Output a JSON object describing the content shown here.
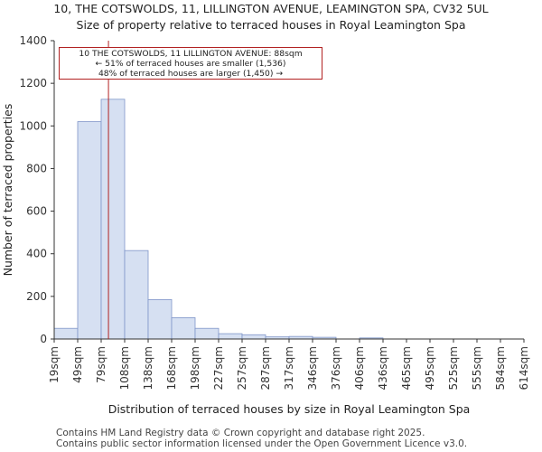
{
  "title_line1": "10, THE COTSWOLDS, 11, LILLINGTON AVENUE, LEAMINGTON SPA, CV32 5UL",
  "title_line2": "Size of property relative to terraced houses in Royal Leamington Spa",
  "footer_line1": "Contains HM Land Registry data © Crown copyright and database right 2025.",
  "footer_line2": "Contains public sector information licensed under the Open Government Licence v3.0.",
  "annotation": {
    "line1": "10 THE COTSWOLDS, 11 LILLINGTON AVENUE: 88sqm",
    "line2": "← 51% of terraced houses are smaller (1,536)",
    "line3": "48% of terraced houses are larger (1,450) →"
  },
  "colors": {
    "bar_fill": "#d6e0f2",
    "bar_edge": "#7f95c8",
    "marker": "#b22222",
    "axis": "#333333"
  },
  "chart_data": {
    "type": "bar",
    "title": "Size of property relative to terraced houses in Royal Leamington Spa",
    "xlabel": "Distribution of terraced houses by size in Royal Leamington Spa",
    "ylabel": "Number of terraced properties",
    "bin_edges": [
      19,
      49,
      79,
      108,
      138,
      168,
      198,
      227,
      257,
      287,
      317,
      346,
      376,
      406,
      436,
      465,
      495,
      525,
      555,
      584,
      614
    ],
    "tick_labels": [
      "19sqm",
      "49sqm",
      "79sqm",
      "108sqm",
      "138sqm",
      "168sqm",
      "198sqm",
      "227sqm",
      "257sqm",
      "287sqm",
      "317sqm",
      "346sqm",
      "376sqm",
      "406sqm",
      "436sqm",
      "465sqm",
      "495sqm",
      "525sqm",
      "555sqm",
      "584sqm",
      "614sqm"
    ],
    "values": [
      50,
      1020,
      1125,
      415,
      185,
      100,
      50,
      25,
      20,
      10,
      12,
      8,
      0,
      5,
      0,
      0,
      0,
      0,
      0,
      0
    ],
    "ylim": [
      0,
      1400
    ],
    "yticks": [
      0,
      200,
      400,
      600,
      800,
      1000,
      1200,
      1400
    ],
    "marker_value": 88,
    "marker_label": "88sqm"
  }
}
